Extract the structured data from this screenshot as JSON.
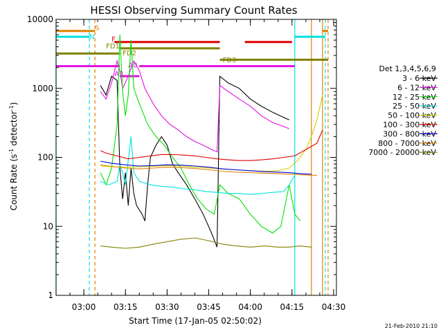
{
  "chart_data": {
    "type": "line",
    "title": "HESSI Observing Summary Count Rates",
    "xlabel": "Start Time (17-Jan-05 02:50:02)",
    "ylabel_main": "Count Rate (s",
    "ylabel_sup": "-1",
    "ylabel_mid": " detector",
    "ylabel_sup2": "-1",
    "ylabel_end": ")",
    "footer": "21-Feb-2010 21:10",
    "y_scale": "log",
    "xlim": [
      "02:50",
      "04:31"
    ],
    "ylim": [
      1,
      10000
    ],
    "x_ticks": [
      {
        "t": "03:00",
        "label": "03:00"
      },
      {
        "t": "03:15",
        "label": "03:15"
      },
      {
        "t": "03:30",
        "label": "03:30"
      },
      {
        "t": "03:45",
        "label": "03:45"
      },
      {
        "t": "04:00",
        "label": "04:00"
      },
      {
        "t": "04:15",
        "label": "04:15"
      },
      {
        "t": "04:30",
        "label": "04:30"
      }
    ],
    "y_ticks": [
      {
        "v": 1,
        "label": "1"
      },
      {
        "v": 10,
        "label": "10"
      },
      {
        "v": 100,
        "label": "100"
      },
      {
        "v": 1000,
        "label": "1000"
      },
      {
        "v": 10000,
        "label": "10000"
      }
    ],
    "legend": {
      "header": "Det 1,3,4,5,6,9",
      "position": "right",
      "entries": [
        {
          "label": "3 - 6 keV",
          "color": "#000000"
        },
        {
          "label": "6 - 12 keV",
          "color": "#e010e0"
        },
        {
          "label": "12 - 25 keV",
          "color": "#00e000"
        },
        {
          "label": "25 - 50 keV",
          "color": "#00e0e0"
        },
        {
          "label": "50 - 100 keV",
          "color": "#d0d000"
        },
        {
          "label": "100 - 300 keV",
          "color": "#e00000"
        },
        {
          "label": "300 - 800 keV",
          "color": "#0000e0"
        },
        {
          "label": "800 - 7000 keV",
          "color": "#e08000"
        },
        {
          "label": "7000 - 20000 keV",
          "color": "#808000"
        }
      ]
    },
    "flag_labels": [
      {
        "text": "S",
        "t": "03:04",
        "v": 7000,
        "color": "#e08000"
      },
      {
        "text": "N",
        "t": "03:02",
        "v": 5200,
        "color": "#00e0e0"
      },
      {
        "text": "F",
        "t": "03:10",
        "v": 4800,
        "color": "#e00000"
      },
      {
        "text": "FD1",
        "t": "03:08",
        "v": 3800,
        "color": "#808000"
      },
      {
        "text": "FD2",
        "t": "03:14",
        "v": 3000,
        "color": "#808000"
      },
      {
        "text": "FD3",
        "t": "03:50",
        "v": 2400,
        "color": "#808000"
      },
      {
        "text": "A0",
        "t": "03:16",
        "v": 2000,
        "color": "#e010e0"
      },
      {
        "text": "A3",
        "t": "03:11",
        "v": 1500,
        "color": "#e010e0"
      }
    ],
    "flag_bars": [
      {
        "name": "S",
        "color": "#e08000",
        "v": 6800,
        "segments": [
          [
            "02:50",
            "03:04"
          ],
          [
            "04:26",
            "04:28"
          ]
        ]
      },
      {
        "name": "N",
        "color": "#00e0e0",
        "v": 5600,
        "segments": [
          [
            "02:50",
            "03:02"
          ],
          [
            "04:16",
            "04:27"
          ]
        ]
      },
      {
        "name": "F",
        "color": "#e00000",
        "v": 4700,
        "segments": [
          [
            "03:11",
            "03:49"
          ],
          [
            "03:58",
            "04:15"
          ]
        ]
      },
      {
        "name": "FD1",
        "color": "#808000",
        "v": 3200,
        "segments": [
          [
            "02:50",
            "03:13"
          ]
        ]
      },
      {
        "name": "FD2",
        "color": "#808000",
        "v": 3800,
        "segments": [
          [
            "03:13",
            "03:49"
          ]
        ]
      },
      {
        "name": "FD3",
        "color": "#808000",
        "v": 2600,
        "segments": [
          [
            "03:49",
            "04:28"
          ]
        ]
      },
      {
        "name": "A0",
        "color": "#e010e0",
        "v": 2100,
        "segments": [
          [
            "02:50",
            "03:13"
          ],
          [
            "03:20",
            "04:16"
          ]
        ]
      },
      {
        "name": "A3",
        "color": "#e010e0",
        "v": 1500,
        "segments": [
          [
            "03:13",
            "03:20"
          ]
        ]
      }
    ],
    "vlines": [
      {
        "t": "02:50",
        "color": "#00e0e0",
        "style": "solid"
      },
      {
        "t": "03:02",
        "color": "#00e0e0",
        "style": "dashed"
      },
      {
        "t": "03:04",
        "color": "#e08000",
        "style": "dashed"
      },
      {
        "t": "04:16",
        "color": "#00e0e0",
        "style": "solid"
      },
      {
        "t": "04:22",
        "color": "#e08000",
        "style": "solid"
      },
      {
        "t": "04:26",
        "color": "#e08000",
        "style": "solid"
      },
      {
        "t": "04:27",
        "color": "#00e0e0",
        "style": "dashed"
      },
      {
        "t": "04:28",
        "color": "#e08000",
        "style": "dashed"
      }
    ],
    "series": [
      {
        "name": "3 - 6 keV",
        "color": "#000000",
        "points": [
          [
            "03:06",
            1100
          ],
          [
            "03:08",
            800
          ],
          [
            "03:10",
            1500
          ],
          [
            "03:12",
            1300
          ],
          [
            "03:13",
            70
          ],
          [
            "03:14",
            25
          ],
          [
            "03:15",
            60
          ],
          [
            "03:16",
            20
          ],
          [
            "03:17",
            70
          ],
          [
            "03:18",
            30
          ],
          [
            "03:19",
            20
          ],
          [
            "03:21",
            15
          ],
          [
            "03:22",
            12
          ],
          [
            "03:23",
            40
          ],
          [
            "03:24",
            100
          ],
          [
            "03:26",
            150
          ],
          [
            "03:28",
            200
          ],
          [
            "03:30",
            150
          ],
          [
            "03:32",
            80
          ],
          [
            "03:34",
            60
          ],
          [
            "03:37",
            40
          ],
          [
            "03:40",
            25
          ],
          [
            "03:43",
            15
          ],
          [
            "03:46",
            8
          ],
          [
            "03:48",
            5
          ],
          [
            "03:49",
            1500
          ],
          [
            "03:52",
            1200
          ],
          [
            "03:56",
            1000
          ],
          [
            "04:00",
            700
          ],
          [
            "04:04",
            550
          ],
          [
            "04:08",
            450
          ],
          [
            "04:12",
            380
          ],
          [
            "04:14",
            350
          ]
        ]
      },
      {
        "name": "6 - 12 keV",
        "color": "#e010e0",
        "points": [
          [
            "03:06",
            900
          ],
          [
            "03:08",
            700
          ],
          [
            "03:10",
            1200
          ],
          [
            "03:12",
            2500
          ],
          [
            "03:13",
            1800
          ],
          [
            "03:14",
            1000
          ],
          [
            "03:16",
            1500
          ],
          [
            "03:18",
            2500
          ],
          [
            "03:20",
            1800
          ],
          [
            "03:22",
            1000
          ],
          [
            "03:25",
            600
          ],
          [
            "03:28",
            400
          ],
          [
            "03:31",
            300
          ],
          [
            "03:34",
            250
          ],
          [
            "03:37",
            200
          ],
          [
            "03:40",
            170
          ],
          [
            "03:43",
            150
          ],
          [
            "03:46",
            130
          ],
          [
            "03:48",
            120
          ],
          [
            "03:49",
            1100
          ],
          [
            "03:52",
            900
          ],
          [
            "03:56",
            700
          ],
          [
            "04:00",
            550
          ],
          [
            "04:04",
            400
          ],
          [
            "04:08",
            320
          ],
          [
            "04:12",
            280
          ],
          [
            "04:14",
            260
          ]
        ]
      },
      {
        "name": "12 - 25 keV",
        "color": "#00e000",
        "points": [
          [
            "03:06",
            60
          ],
          [
            "03:08",
            40
          ],
          [
            "03:10",
            70
          ],
          [
            "03:12",
            300
          ],
          [
            "03:13",
            6000
          ],
          [
            "03:14",
            900
          ],
          [
            "03:15",
            400
          ],
          [
            "03:16",
            800
          ],
          [
            "03:17",
            5000
          ],
          [
            "03:18",
            1000
          ],
          [
            "03:20",
            600
          ],
          [
            "03:23",
            300
          ],
          [
            "03:26",
            200
          ],
          [
            "03:29",
            150
          ],
          [
            "03:32",
            100
          ],
          [
            "03:35",
            70
          ],
          [
            "03:38",
            40
          ],
          [
            "03:41",
            25
          ],
          [
            "03:44",
            18
          ],
          [
            "03:47",
            15
          ],
          [
            "03:49",
            40
          ],
          [
            "03:52",
            30
          ],
          [
            "03:56",
            25
          ],
          [
            "04:00",
            15
          ],
          [
            "04:04",
            10
          ],
          [
            "04:08",
            8
          ],
          [
            "04:11",
            10
          ],
          [
            "04:14",
            40
          ],
          [
            "04:16",
            15
          ],
          [
            "04:18",
            12
          ]
        ]
      },
      {
        "name": "25 - 50 keV",
        "color": "#00e0e0",
        "points": [
          [
            "03:06",
            45
          ],
          [
            "03:09",
            40
          ],
          [
            "03:12",
            45
          ],
          [
            "03:13",
            80
          ],
          [
            "03:14",
            60
          ],
          [
            "03:15",
            40
          ],
          [
            "03:17",
            200
          ],
          [
            "03:18",
            60
          ],
          [
            "03:20",
            45
          ],
          [
            "03:24",
            40
          ],
          [
            "03:28",
            38
          ],
          [
            "03:32",
            37
          ],
          [
            "03:36",
            35
          ],
          [
            "03:40",
            34
          ],
          [
            "03:44",
            32
          ],
          [
            "03:48",
            31
          ],
          [
            "03:52",
            30
          ],
          [
            "03:56",
            30
          ],
          [
            "04:00",
            29
          ],
          [
            "04:04",
            30
          ],
          [
            "04:08",
            31
          ],
          [
            "04:12",
            32
          ],
          [
            "04:14",
            40
          ],
          [
            "04:16",
            55
          ]
        ]
      },
      {
        "name": "50 - 100 keV",
        "color": "#d0d000",
        "points": [
          [
            "03:06",
            75
          ],
          [
            "03:10",
            73
          ],
          [
            "03:15",
            72
          ],
          [
            "03:20",
            73
          ],
          [
            "03:25",
            74
          ],
          [
            "03:30",
            76
          ],
          [
            "03:35",
            75
          ],
          [
            "03:40",
            72
          ],
          [
            "03:45",
            70
          ],
          [
            "03:50",
            68
          ],
          [
            "03:55",
            66
          ],
          [
            "04:00",
            64
          ],
          [
            "04:05",
            63
          ],
          [
            "04:10",
            64
          ],
          [
            "04:14",
            70
          ],
          [
            "04:17",
            90
          ],
          [
            "04:20",
            130
          ],
          [
            "04:22",
            200
          ],
          [
            "04:24",
            350
          ],
          [
            "04:26",
            800
          ]
        ]
      },
      {
        "name": "100 - 300 keV",
        "color": "#e00000",
        "points": [
          [
            "03:06",
            125
          ],
          [
            "03:08",
            115
          ],
          [
            "03:12",
            105
          ],
          [
            "03:16",
            95
          ],
          [
            "03:20",
            100
          ],
          [
            "03:24",
            105
          ],
          [
            "03:28",
            110
          ],
          [
            "03:32",
            110
          ],
          [
            "03:36",
            108
          ],
          [
            "03:40",
            105
          ],
          [
            "03:44",
            100
          ],
          [
            "03:48",
            95
          ],
          [
            "03:52",
            92
          ],
          [
            "03:56",
            90
          ],
          [
            "04:00",
            90
          ],
          [
            "04:04",
            92
          ],
          [
            "04:08",
            95
          ],
          [
            "04:12",
            100
          ],
          [
            "04:16",
            105
          ],
          [
            "04:20",
            130
          ],
          [
            "04:24",
            160
          ],
          [
            "04:26",
            250
          ]
        ]
      },
      {
        "name": "300 - 800 keV",
        "color": "#0000e0",
        "points": [
          [
            "03:06",
            88
          ],
          [
            "03:10",
            82
          ],
          [
            "03:15",
            78
          ],
          [
            "03:20",
            75
          ],
          [
            "03:25",
            76
          ],
          [
            "03:30",
            78
          ],
          [
            "03:35",
            77
          ],
          [
            "03:40",
            75
          ],
          [
            "03:45",
            72
          ],
          [
            "03:50",
            68
          ],
          [
            "03:55",
            66
          ],
          [
            "04:00",
            64
          ],
          [
            "04:05",
            62
          ],
          [
            "04:10",
            61
          ],
          [
            "04:14",
            60
          ],
          [
            "04:18",
            58
          ],
          [
            "04:22",
            57
          ]
        ]
      },
      {
        "name": "800 - 7000 keV",
        "color": "#e08000",
        "points": [
          [
            "03:06",
            78
          ],
          [
            "03:10",
            74
          ],
          [
            "03:15",
            70
          ],
          [
            "03:20",
            68
          ],
          [
            "03:25",
            70
          ],
          [
            "03:30",
            72
          ],
          [
            "03:35",
            71
          ],
          [
            "03:40",
            69
          ],
          [
            "03:45",
            66
          ],
          [
            "03:50",
            63
          ],
          [
            "03:55",
            61
          ],
          [
            "04:00",
            60
          ],
          [
            "04:05",
            59
          ],
          [
            "04:10",
            58
          ],
          [
            "04:14",
            57
          ],
          [
            "04:18",
            56
          ],
          [
            "04:22",
            55
          ],
          [
            "04:24",
            55
          ]
        ]
      },
      {
        "name": "7000 - 20000 keV",
        "color": "#808000",
        "points": [
          [
            "03:06",
            5.2
          ],
          [
            "03:10",
            5.0
          ],
          [
            "03:15",
            4.8
          ],
          [
            "03:20",
            5.0
          ],
          [
            "03:25",
            5.5
          ],
          [
            "03:30",
            6.0
          ],
          [
            "03:35",
            6.5
          ],
          [
            "03:40",
            6.8
          ],
          [
            "03:45",
            6.2
          ],
          [
            "03:50",
            5.5
          ],
          [
            "03:55",
            5.2
          ],
          [
            "04:00",
            5.0
          ],
          [
            "04:05",
            5.2
          ],
          [
            "04:10",
            5.0
          ],
          [
            "04:14",
            5.0
          ],
          [
            "04:18",
            5.2
          ],
          [
            "04:22",
            5.0
          ]
        ]
      }
    ]
  }
}
